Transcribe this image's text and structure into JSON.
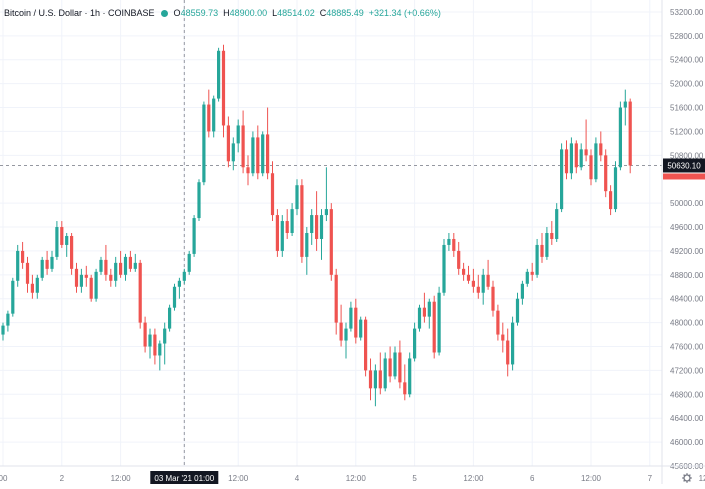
{
  "legend": {
    "symbol": "Bitcoin / U.S. Dollar · 1h · COINBASE",
    "open_label": "O",
    "open": "48559.73",
    "high_label": "H",
    "high": "48900.00",
    "low_label": "L",
    "low": "48514.02",
    "close_label": "C",
    "close": "48885.49",
    "change": "+321.34 (+0.66%)"
  },
  "colors": {
    "up": "#26a69a",
    "down": "#ef5350",
    "grid": "#f0f3fa",
    "axis_text": "#787b86",
    "crosshair": "#9598a1",
    "highlight_bg": "#131722",
    "price_label_bg": "#131722"
  },
  "axis": {
    "current_price_label": "50630.10",
    "crosshair_time_label": "03 Mar '21  01:00",
    "settings_icon": "gear-icon"
  },
  "chart_data": {
    "type": "candlestick",
    "title": "Bitcoin / U.S. Dollar · 1h · COINBASE",
    "interval": "1h",
    "ylim": [
      45600,
      53400
    ],
    "y_ticks": [
      53200,
      52800,
      52400,
      52000,
      51600,
      51200,
      50800,
      50000,
      49600,
      49200,
      48800,
      48400,
      48000,
      47600,
      47200,
      46800,
      46400,
      46000,
      45600
    ],
    "x_ticks": [
      {
        "label": "00",
        "pos": 0
      },
      {
        "label": "2",
        "pos": 12
      },
      {
        "label": "12:00",
        "pos": 24
      },
      {
        "label": "03 Mar '21 01:00",
        "pos": 37
      },
      {
        "label": "12:00",
        "pos": 48
      },
      {
        "label": "4",
        "pos": 60
      },
      {
        "label": "12:00",
        "pos": 72
      },
      {
        "label": "5",
        "pos": 84
      },
      {
        "label": "12:00",
        "pos": 96
      },
      {
        "label": "6",
        "pos": 108
      },
      {
        "label": "12:00",
        "pos": 120
      },
      {
        "label": "7",
        "pos": 132
      },
      {
        "label": "12:00",
        "pos": 144
      },
      {
        "label": "8",
        "pos": 156
      },
      {
        "label": "12:",
        "pos": 168
      }
    ],
    "current_price": 50630.1,
    "grid": true,
    "candles_ohlc": [
      [
        47800,
        48000,
        47700,
        47950
      ],
      [
        47950,
        48200,
        47850,
        48150
      ],
      [
        48150,
        48750,
        48100,
        48700
      ],
      [
        48700,
        49300,
        48600,
        49200
      ],
      [
        49200,
        49350,
        48900,
        49000
      ],
      [
        49000,
        49100,
        48500,
        48650
      ],
      [
        48650,
        48800,
        48400,
        48500
      ],
      [
        48500,
        48800,
        48400,
        48750
      ],
      [
        48750,
        49100,
        48700,
        49050
      ],
      [
        49050,
        49200,
        48800,
        48900
      ],
      [
        48900,
        49200,
        48850,
        49100
      ],
      [
        49100,
        49700,
        49050,
        49600
      ],
      [
        49600,
        49700,
        49250,
        49300
      ],
      [
        49300,
        49500,
        49100,
        49450
      ],
      [
        49450,
        49500,
        48800,
        48900
      ],
      [
        48900,
        49000,
        48500,
        48600
      ],
      [
        48600,
        48900,
        48500,
        48800
      ],
      [
        48800,
        48950,
        48600,
        48750
      ],
      [
        48750,
        48800,
        48350,
        48400
      ],
      [
        48400,
        48900,
        48350,
        48850
      ],
      [
        48850,
        49100,
        48800,
        49050
      ],
      [
        49050,
        49300,
        48700,
        48800
      ],
      [
        48800,
        48900,
        48600,
        48700
      ],
      [
        48700,
        49100,
        48600,
        49000
      ],
      [
        49000,
        49200,
        48750,
        48800
      ],
      [
        48800,
        49150,
        48700,
        49100
      ],
      [
        49100,
        49200,
        48850,
        48900
      ],
      [
        48900,
        49150,
        48850,
        49000
      ],
      [
        49000,
        49050,
        47900,
        48000
      ],
      [
        48000,
        48100,
        47500,
        47600
      ],
      [
        47600,
        47900,
        47400,
        47800
      ],
      [
        47800,
        47900,
        47300,
        47450
      ],
      [
        47450,
        47700,
        47200,
        47650
      ],
      [
        47650,
        48000,
        47300,
        47900
      ],
      [
        47900,
        48300,
        47850,
        48250
      ],
      [
        48250,
        48650,
        48200,
        48600
      ],
      [
        48600,
        48750,
        48400,
        48700
      ],
      [
        48700,
        48900,
        48650,
        48850
      ],
      [
        48850,
        49200,
        48800,
        49150
      ],
      [
        49150,
        49800,
        49100,
        49750
      ],
      [
        49750,
        50400,
        49700,
        50350
      ],
      [
        50350,
        51700,
        50300,
        51650
      ],
      [
        51650,
        51900,
        51100,
        51200
      ],
      [
        51200,
        51800,
        51100,
        51750
      ],
      [
        51750,
        52600,
        51700,
        52550
      ],
      [
        52550,
        52650,
        51100,
        51300
      ],
      [
        51300,
        51450,
        50600,
        50700
      ],
      [
        50700,
        51100,
        50550,
        51000
      ],
      [
        51000,
        51400,
        50850,
        51300
      ],
      [
        51300,
        51550,
        50500,
        50600
      ],
      [
        50600,
        50800,
        50300,
        50500
      ],
      [
        50500,
        51200,
        50450,
        51100
      ],
      [
        51100,
        51300,
        50400,
        50500
      ],
      [
        50500,
        51200,
        50450,
        51150
      ],
      [
        51150,
        51600,
        50400,
        50500
      ],
      [
        50500,
        50700,
        49700,
        49800
      ],
      [
        49800,
        49900,
        49100,
        49200
      ],
      [
        49200,
        49800,
        49100,
        49700
      ],
      [
        49700,
        49900,
        49400,
        49500
      ],
      [
        49500,
        50000,
        49450,
        49900
      ],
      [
        49900,
        50400,
        49800,
        50300
      ],
      [
        50300,
        50400,
        49000,
        49100
      ],
      [
        49100,
        49600,
        48800,
        49500
      ],
      [
        49500,
        49900,
        49300,
        49800
      ],
      [
        49800,
        50200,
        49200,
        49400
      ],
      [
        49400,
        49900,
        49050,
        49800
      ],
      [
        49800,
        50600,
        49700,
        49900
      ],
      [
        49900,
        50000,
        48700,
        48800
      ],
      [
        48800,
        48900,
        47800,
        48000
      ],
      [
        48000,
        48300,
        47600,
        47700
      ],
      [
        47700,
        48000,
        47400,
        47900
      ],
      [
        47900,
        48350,
        47850,
        48250
      ],
      [
        48250,
        48400,
        47650,
        47750
      ],
      [
        47750,
        48100,
        47700,
        48050
      ],
      [
        48050,
        48100,
        47100,
        47200
      ],
      [
        47200,
        47400,
        46700,
        46900
      ],
      [
        46900,
        47300,
        46600,
        47200
      ],
      [
        47200,
        47500,
        46800,
        46900
      ],
      [
        46900,
        47500,
        46850,
        47400
      ],
      [
        47400,
        47600,
        47000,
        47100
      ],
      [
        47100,
        47600,
        47050,
        47500
      ],
      [
        47500,
        47700,
        46900,
        47000
      ],
      [
        47000,
        47300,
        46700,
        46800
      ],
      [
        46800,
        47500,
        46750,
        47400
      ],
      [
        47400,
        48000,
        47350,
        47900
      ],
      [
        47900,
        48300,
        47850,
        48250
      ],
      [
        48250,
        48500,
        48000,
        48100
      ],
      [
        48100,
        48400,
        47900,
        48350
      ],
      [
        48350,
        48450,
        47400,
        47500
      ],
      [
        47500,
        48600,
        47450,
        48500
      ],
      [
        48500,
        49400,
        48450,
        49300
      ],
      [
        49300,
        49500,
        49200,
        49400
      ],
      [
        49400,
        49500,
        49100,
        49200
      ],
      [
        49200,
        49350,
        48800,
        48900
      ],
      [
        48900,
        49000,
        48700,
        48800
      ],
      [
        48800,
        48950,
        48650,
        48700
      ],
      [
        48700,
        48900,
        48500,
        48600
      ],
      [
        48600,
        48800,
        48400,
        48500
      ],
      [
        48500,
        48900,
        48300,
        48800
      ],
      [
        48800,
        49050,
        48550,
        48600
      ],
      [
        48600,
        48700,
        48100,
        48200
      ],
      [
        48200,
        48300,
        47700,
        47800
      ],
      [
        47800,
        48000,
        47500,
        47700
      ],
      [
        47700,
        47900,
        47100,
        47300
      ],
      [
        47300,
        48100,
        47200,
        48000
      ],
      [
        48000,
        48500,
        47950,
        48400
      ],
      [
        48400,
        48700,
        48300,
        48650
      ],
      [
        48650,
        48900,
        48600,
        48850
      ],
      [
        48850,
        49000,
        48700,
        48800
      ],
      [
        48800,
        49400,
        48750,
        49300
      ],
      [
        49300,
        49500,
        49000,
        49100
      ],
      [
        49100,
        49600,
        49050,
        49500
      ],
      [
        49500,
        49700,
        49300,
        49400
      ],
      [
        49400,
        50000,
        49350,
        49900
      ],
      [
        49900,
        51000,
        49850,
        50900
      ],
      [
        50900,
        51050,
        50400,
        50500
      ],
      [
        50500,
        51100,
        50400,
        51000
      ],
      [
        51000,
        51050,
        50500,
        50600
      ],
      [
        50600,
        51000,
        50550,
        50900
      ],
      [
        50900,
        51400,
        50700,
        50800
      ],
      [
        50800,
        50900,
        50300,
        50400
      ],
      [
        50400,
        51100,
        50350,
        51000
      ],
      [
        51000,
        51200,
        50700,
        50800
      ],
      [
        50800,
        50900,
        50100,
        50200
      ],
      [
        50200,
        50300,
        49800,
        49900
      ],
      [
        49900,
        50700,
        49850,
        50600
      ],
      [
        50600,
        51700,
        50550,
        51600
      ],
      [
        51600,
        51900,
        51300,
        51700
      ],
      [
        51700,
        51750,
        50500,
        50630.1
      ]
    ]
  }
}
